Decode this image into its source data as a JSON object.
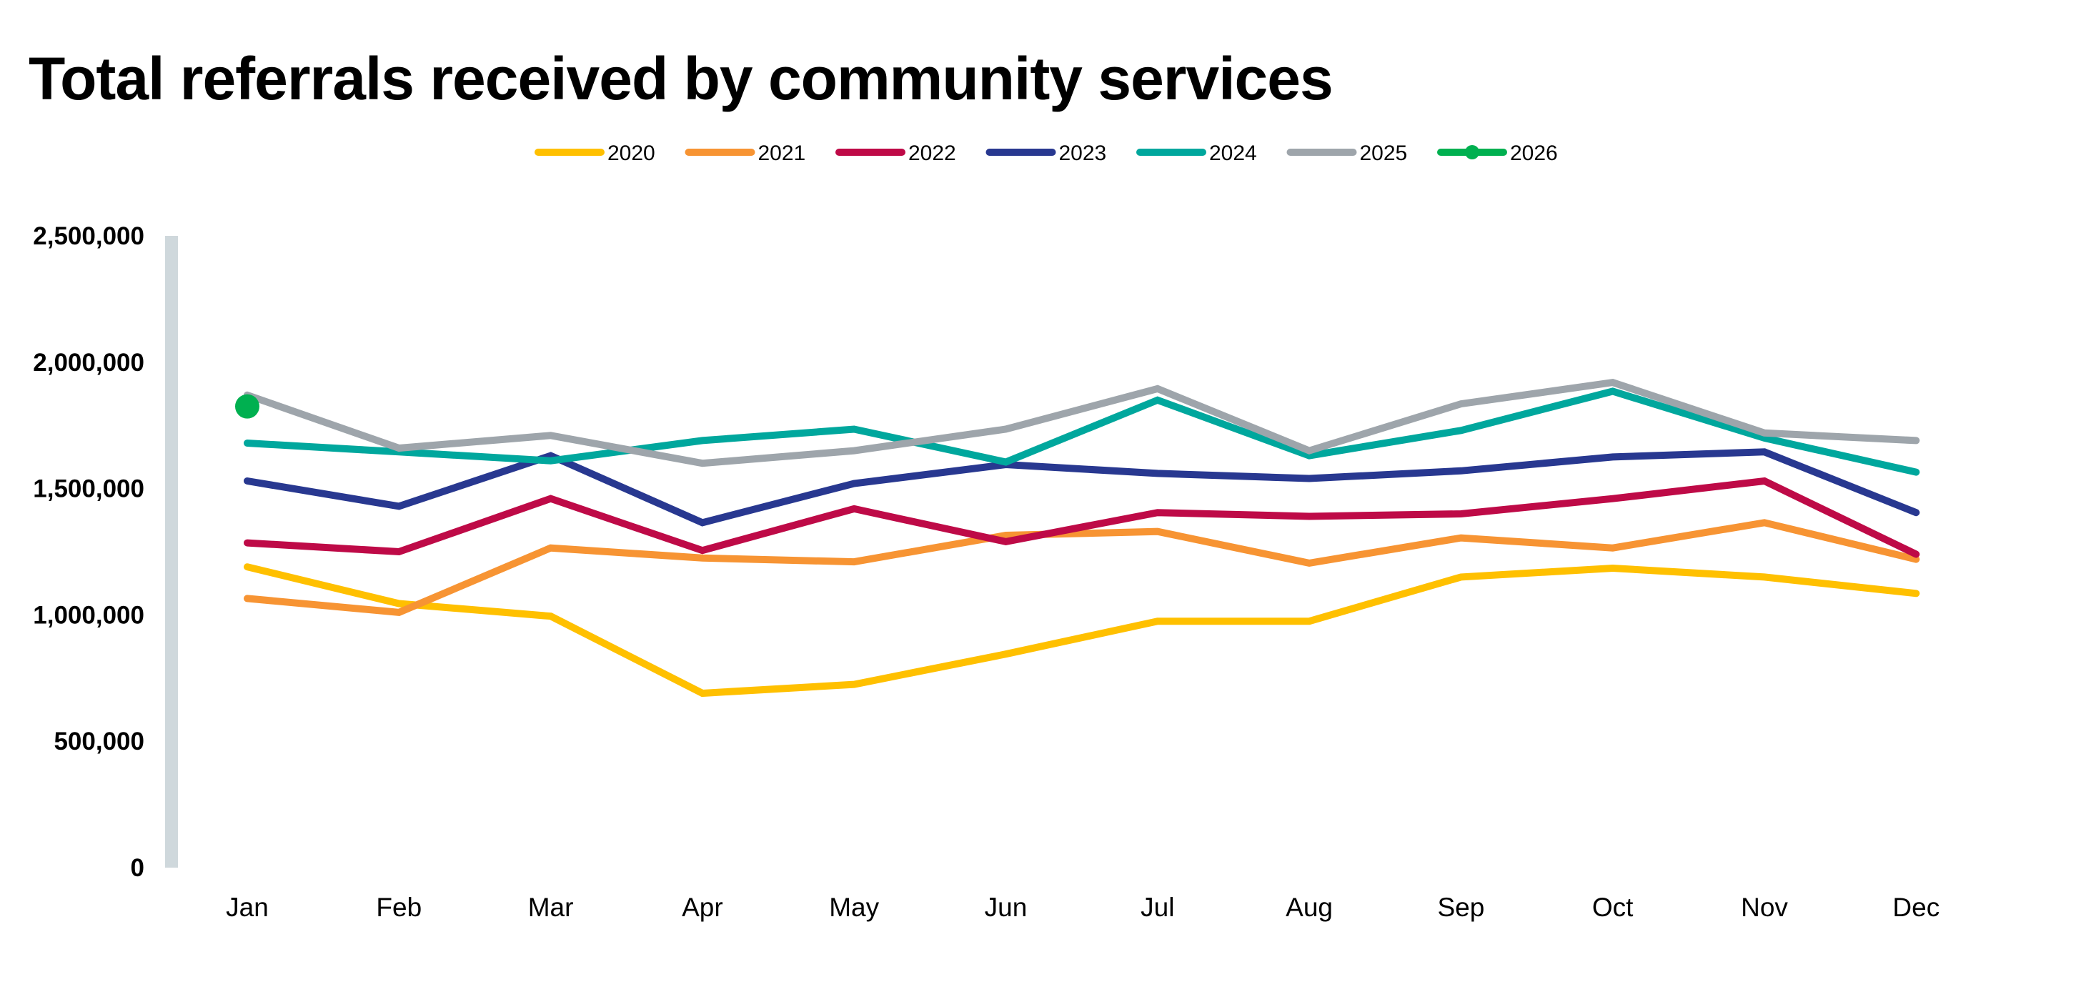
{
  "title": "Total referrals received by community services",
  "chart_data": {
    "type": "line",
    "title": "Total referrals received by community services",
    "xlabel": "",
    "ylabel": "",
    "categories": [
      "Jan",
      "Feb",
      "Mar",
      "Apr",
      "May",
      "Jun",
      "Jul",
      "Aug",
      "Sep",
      "Oct",
      "Nov",
      "Dec"
    ],
    "ylim": [
      0,
      2500000
    ],
    "yticks": [
      0,
      500000,
      1000000,
      1500000,
      2000000,
      2500000
    ],
    "ytick_labels": [
      "0",
      "500,000",
      "1,000,000",
      "1,500,000",
      "2,000,000",
      "2,500,000"
    ],
    "grid": false,
    "legend_position": "top-center",
    "series": [
      {
        "name": "2020",
        "color": "#FFC000",
        "marker": false,
        "values": [
          1190000,
          1045000,
          995000,
          690000,
          725000,
          845000,
          975000,
          975000,
          1150000,
          1185000,
          1150000,
          1085000
        ]
      },
      {
        "name": "2021",
        "color": "#F79433",
        "marker": false,
        "values": [
          1065000,
          1010000,
          1265000,
          1225000,
          1210000,
          1315000,
          1330000,
          1205000,
          1305000,
          1265000,
          1365000,
          1220000
        ]
      },
      {
        "name": "2022",
        "color": "#BE0A47",
        "marker": false,
        "values": [
          1285000,
          1250000,
          1460000,
          1255000,
          1420000,
          1290000,
          1405000,
          1390000,
          1400000,
          1460000,
          1530000,
          1240000
        ]
      },
      {
        "name": "2023",
        "color": "#283890",
        "marker": false,
        "values": [
          1530000,
          1430000,
          1630000,
          1365000,
          1520000,
          1595000,
          1560000,
          1540000,
          1570000,
          1625000,
          1645000,
          1405000
        ]
      },
      {
        "name": "2024",
        "color": "#00A79D",
        "marker": false,
        "values": [
          1680000,
          1645000,
          1610000,
          1690000,
          1735000,
          1605000,
          1850000,
          1630000,
          1730000,
          1885000,
          1700000,
          1565000
        ]
      },
      {
        "name": "2025",
        "color": "#9EA5AB",
        "marker": false,
        "values": [
          1870000,
          1660000,
          1710000,
          1600000,
          1650000,
          1735000,
          1895000,
          1650000,
          1835000,
          1920000,
          1720000,
          1690000
        ]
      },
      {
        "name": "2026",
        "color": "#00B050",
        "marker": true,
        "values": [
          1825000
        ]
      }
    ]
  },
  "axis": {
    "color": "#CFD8DC"
  }
}
